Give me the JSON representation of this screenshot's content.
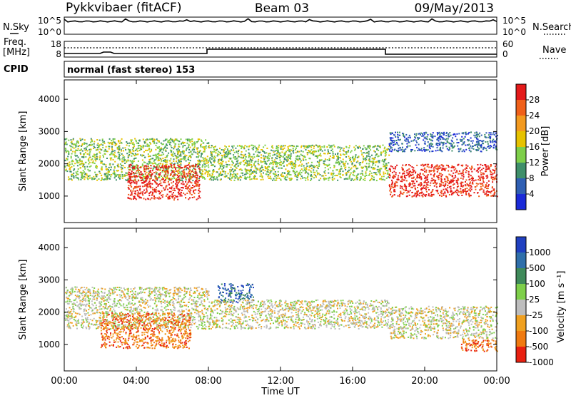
{
  "header": {
    "station": "Pykkvibaer (fitACF)",
    "beam": "Beam 03",
    "date": "09/May/2013"
  },
  "noise_panel": {
    "left_label": "N.Sky",
    "right_label": "N.Search",
    "left_ticks": [
      "10^5",
      "10^0"
    ],
    "right_ticks": [
      "10^5",
      "10^0"
    ]
  },
  "freq_panel": {
    "left_label_1": "Freq.",
    "left_label_2": "[MHz]",
    "right_label": "Nave",
    "left_ticks": [
      "18",
      "8"
    ],
    "right_ticks": [
      "60",
      "0"
    ]
  },
  "cpid_panel": {
    "label": "CPID",
    "text": "normal (fast stereo) 153"
  },
  "x_axis": {
    "label": "Time UT",
    "ticks": [
      "00:00",
      "04:00",
      "08:00",
      "12:00",
      "16:00",
      "20:00",
      "00:00"
    ]
  },
  "power_panel": {
    "ylabel": "Slant Range [km]",
    "yticks": [
      "1000",
      "2000",
      "3000",
      "4000"
    ],
    "colorbar_label": "Power [dB]",
    "colorbar_ticks": [
      "4",
      "8",
      "12",
      "16",
      "20",
      "24",
      "28"
    ],
    "colors": [
      "#1a2ad8",
      "#2f5fb3",
      "#3f8f6a",
      "#7ecf4a",
      "#e6c200",
      "#f39a1f",
      "#f0601a",
      "#e41a1a"
    ]
  },
  "velocity_panel": {
    "ylabel": "Slant Range [km]",
    "yticks": [
      "1000",
      "2000",
      "3000",
      "4000"
    ],
    "colorbar_label": "Velocity [m s⁻¹]",
    "colorbar_ticks": [
      "1000",
      "500",
      "100",
      "25",
      "-25",
      "-100",
      "-500",
      "-1000"
    ],
    "colors": [
      "#2040c0",
      "#2f6faa",
      "#3f8a5a",
      "#7ecf4a",
      "#bdbdbd",
      "#f0a020",
      "#f07a10",
      "#e82010"
    ]
  },
  "chart_data": [
    {
      "type": "heatmap",
      "title": "Power [dB]",
      "xlabel": "Time UT",
      "ylabel": "Slant Range [km]",
      "xlim": [
        0,
        24
      ],
      "ylim": [
        180,
        4600
      ],
      "colorbar_range": [
        0,
        32
      ],
      "echo_bands": [
        {
          "t": [
            0,
            8
          ],
          "range_km": [
            1500,
            2800
          ],
          "dominant_power_db": 12
        },
        {
          "t": [
            3.5,
            7.5
          ],
          "range_km": [
            900,
            2000
          ],
          "dominant_power_db": 28
        },
        {
          "t": [
            8,
            18
          ],
          "range_km": [
            1500,
            2600
          ],
          "dominant_power_db": 14
        },
        {
          "t": [
            18,
            24
          ],
          "range_km": [
            1000,
            2000
          ],
          "dominant_power_db": 28
        },
        {
          "t": [
            18,
            24
          ],
          "range_km": [
            2400,
            3000
          ],
          "dominant_power_db": 6
        }
      ]
    },
    {
      "type": "heatmap",
      "title": "Velocity [m s⁻¹]",
      "xlabel": "Time UT",
      "ylabel": "Slant Range [km]",
      "xlim": [
        0,
        24
      ],
      "ylim": [
        180,
        4600
      ],
      "colorbar_range": [
        -1000,
        1000
      ],
      "echo_bands": [
        {
          "t": [
            0,
            8
          ],
          "range_km": [
            1500,
            2800
          ],
          "dominant_velocity": 0
        },
        {
          "t": [
            2,
            7
          ],
          "range_km": [
            900,
            2000
          ],
          "dominant_velocity": -300
        },
        {
          "t": [
            8.5,
            10.5
          ],
          "range_km": [
            2300,
            2900
          ],
          "dominant_velocity": 300
        },
        {
          "t": [
            8,
            18
          ],
          "range_km": [
            1500,
            2400
          ],
          "dominant_velocity": 0
        },
        {
          "t": [
            18,
            24
          ],
          "range_km": [
            1200,
            2200
          ],
          "dominant_velocity": 0
        },
        {
          "t": [
            22,
            24
          ],
          "range_km": [
            800,
            1200
          ],
          "dominant_velocity": -300
        }
      ]
    }
  ]
}
